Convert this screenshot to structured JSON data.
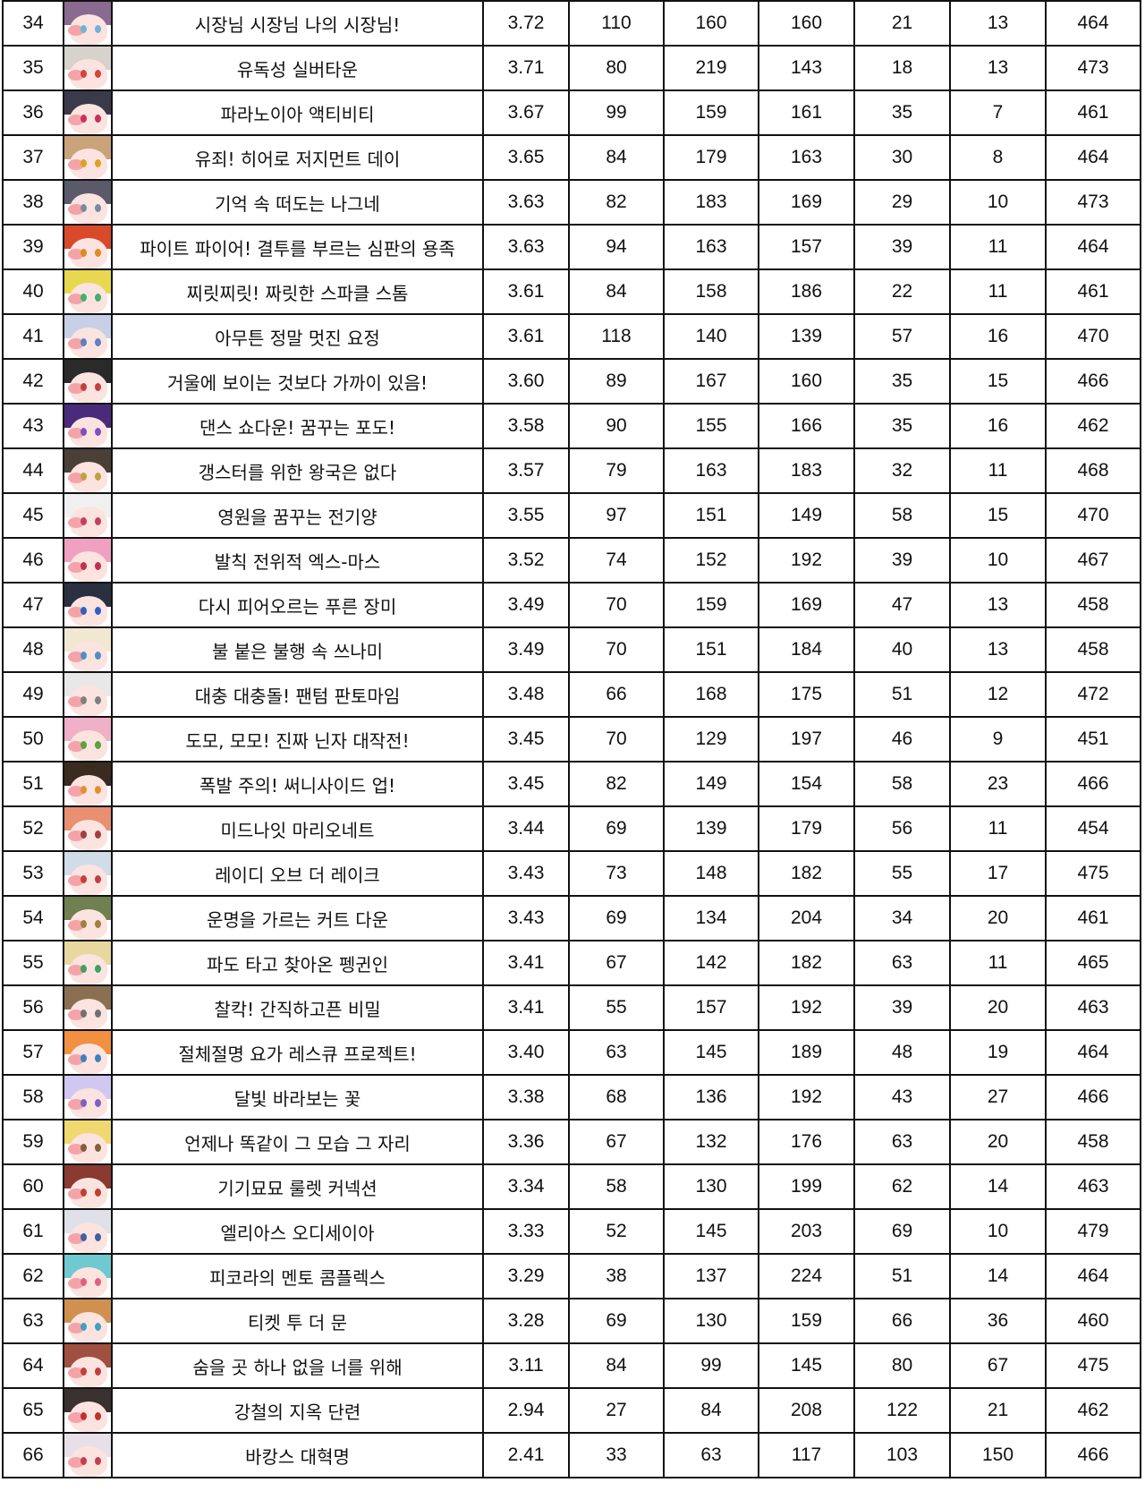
{
  "rows": [
    {
      "rank": "34",
      "title": "시장님 시장님 나의 시장님!",
      "score": "3.72",
      "c1": "110",
      "c2": "160",
      "c3": "160",
      "c4": "21",
      "c5": "13",
      "total": "464",
      "hair": "#8a6a8e",
      "eye": "#6fb3d9"
    },
    {
      "rank": "35",
      "title": "유독성 실버타운",
      "score": "3.71",
      "c1": "80",
      "c2": "219",
      "c3": "143",
      "c4": "18",
      "c5": "13",
      "total": "473",
      "hair": "#d8d2cc",
      "eye": "#d2463c"
    },
    {
      "rank": "36",
      "title": "파라노이아 액티비티",
      "score": "3.67",
      "c1": "99",
      "c2": "159",
      "c3": "161",
      "c4": "35",
      "c5": "7",
      "total": "461",
      "hair": "#3a3a4a",
      "eye": "#c8325a"
    },
    {
      "rank": "37",
      "title": "유죄! 히어로 저지먼트 데이",
      "score": "3.65",
      "c1": "84",
      "c2": "179",
      "c3": "163",
      "c4": "30",
      "c5": "8",
      "total": "464",
      "hair": "#c9a47a",
      "eye": "#e0a020"
    },
    {
      "rank": "38",
      "title": "기억 속 떠도는 나그네",
      "score": "3.63",
      "c1": "82",
      "c2": "183",
      "c3": "169",
      "c4": "29",
      "c5": "10",
      "total": "473",
      "hair": "#5a5a6a",
      "eye": "#7a8aa0"
    },
    {
      "rank": "39",
      "title": "파이트 파이어! 결투를 부르는 심판의 용족",
      "score": "3.63",
      "c1": "94",
      "c2": "163",
      "c3": "157",
      "c4": "39",
      "c5": "11",
      "total": "464",
      "hair": "#d84a2a",
      "eye": "#e08a20"
    },
    {
      "rank": "40",
      "title": "찌릿찌릿! 짜릿한 스파클 스톰",
      "score": "3.61",
      "c1": "84",
      "c2": "158",
      "c3": "186",
      "c4": "22",
      "c5": "11",
      "total": "461",
      "hair": "#e8d850",
      "eye": "#40b070"
    },
    {
      "rank": "41",
      "title": "아무튼 정말 멋진 요정",
      "score": "3.61",
      "c1": "118",
      "c2": "140",
      "c3": "139",
      "c4": "57",
      "c5": "16",
      "total": "470",
      "hair": "#c8d0e8",
      "eye": "#6080c0"
    },
    {
      "rank": "42",
      "title": "거울에 보이는 것보다 가까이 있음!",
      "score": "3.60",
      "c1": "89",
      "c2": "167",
      "c3": "160",
      "c4": "35",
      "c5": "15",
      "total": "466",
      "hair": "#2a2a2a",
      "eye": "#c04040"
    },
    {
      "rank": "43",
      "title": "댄스 쇼다운! 꿈꾸는 포도!",
      "score": "3.58",
      "c1": "90",
      "c2": "155",
      "c3": "166",
      "c4": "35",
      "c5": "16",
      "total": "462",
      "hair": "#4a2a7a",
      "eye": "#8050c0"
    },
    {
      "rank": "44",
      "title": "갱스터를 위한 왕국은 없다",
      "score": "3.57",
      "c1": "79",
      "c2": "163",
      "c3": "183",
      "c4": "32",
      "c5": "11",
      "total": "468",
      "hair": "#4a4038",
      "eye": "#c0a040"
    },
    {
      "rank": "45",
      "title": "영원을 꿈꾸는 전기양",
      "score": "3.55",
      "c1": "97",
      "c2": "151",
      "c3": "149",
      "c4": "58",
      "c5": "15",
      "total": "470",
      "hair": "#f0f0f0",
      "eye": "#c04060"
    },
    {
      "rank": "46",
      "title": "발칙 전위적 엑스-마스",
      "score": "3.52",
      "c1": "74",
      "c2": "152",
      "c3": "192",
      "c4": "39",
      "c5": "10",
      "total": "467",
      "hair": "#f0a0c0",
      "eye": "#c03050"
    },
    {
      "rank": "47",
      "title": "다시 피어오르는 푸른 장미",
      "score": "3.49",
      "c1": "70",
      "c2": "159",
      "c3": "169",
      "c4": "47",
      "c5": "13",
      "total": "458",
      "hair": "#2a3040",
      "eye": "#3060c0"
    },
    {
      "rank": "48",
      "title": "불 붙은 불행 속 쓰나미",
      "score": "3.49",
      "c1": "70",
      "c2": "151",
      "c3": "184",
      "c4": "40",
      "c5": "13",
      "total": "458",
      "hair": "#f0e8d0",
      "eye": "#5090c0"
    },
    {
      "rank": "49",
      "title": "대충 대충돌! 팬텀 판토마임",
      "score": "3.48",
      "c1": "66",
      "c2": "168",
      "c3": "175",
      "c4": "51",
      "c5": "12",
      "total": "472",
      "hair": "#e8e8e8",
      "eye": "#808080"
    },
    {
      "rank": "50",
      "title": "도모, 모모! 진짜 닌자 대작전!",
      "score": "3.45",
      "c1": "70",
      "c2": "129",
      "c3": "197",
      "c4": "46",
      "c5": "9",
      "total": "451",
      "hair": "#f0b0c8",
      "eye": "#60a040"
    },
    {
      "rank": "51",
      "title": "폭발 주의! 써니사이드 업!",
      "score": "3.45",
      "c1": "82",
      "c2": "149",
      "c3": "154",
      "c4": "58",
      "c5": "23",
      "total": "466",
      "hair": "#3a2a20",
      "eye": "#e09030"
    },
    {
      "rank": "52",
      "title": "미드나잇 마리오네트",
      "score": "3.44",
      "c1": "69",
      "c2": "139",
      "c3": "179",
      "c4": "56",
      "c5": "11",
      "total": "454",
      "hair": "#e89070",
      "eye": "#a04040"
    },
    {
      "rank": "53",
      "title": "레이디 오브 더 레이크",
      "score": "3.43",
      "c1": "73",
      "c2": "148",
      "c3": "182",
      "c4": "55",
      "c5": "17",
      "total": "475",
      "hair": "#d0dce8",
      "eye": "#c04040"
    },
    {
      "rank": "54",
      "title": "운명을 가르는 커트 다운",
      "score": "3.43",
      "c1": "69",
      "c2": "134",
      "c3": "204",
      "c4": "34",
      "c5": "20",
      "total": "461",
      "hair": "#708050",
      "eye": "#a08040"
    },
    {
      "rank": "55",
      "title": "파도 타고 찾아온 펭귄인",
      "score": "3.41",
      "c1": "67",
      "c2": "142",
      "c3": "182",
      "c4": "63",
      "c5": "11",
      "total": "465",
      "hair": "#e8d8a0",
      "eye": "#40a060"
    },
    {
      "rank": "56",
      "title": "찰칵! 간직하고픈 비밀",
      "score": "3.41",
      "c1": "55",
      "c2": "157",
      "c3": "192",
      "c4": "39",
      "c5": "20",
      "total": "463",
      "hair": "#8a7050",
      "eye": "#707070"
    },
    {
      "rank": "57",
      "title": "절체절명 요가 레스큐 프로젝트!",
      "score": "3.40",
      "c1": "63",
      "c2": "145",
      "c3": "189",
      "c4": "48",
      "c5": "19",
      "total": "464",
      "hair": "#f09040",
      "eye": "#4080c0"
    },
    {
      "rank": "58",
      "title": "달빛 바라보는 꽃",
      "score": "3.38",
      "c1": "68",
      "c2": "136",
      "c3": "192",
      "c4": "43",
      "c5": "27",
      "total": "466",
      "hair": "#d0c8f0",
      "eye": "#8060c0"
    },
    {
      "rank": "59",
      "title": "언제나 똑같이 그 모습 그 자리",
      "score": "3.36",
      "c1": "67",
      "c2": "132",
      "c3": "176",
      "c4": "63",
      "c5": "20",
      "total": "458",
      "hair": "#f0d870",
      "eye": "#806040"
    },
    {
      "rank": "60",
      "title": "기기묘묘 룰렛 커넥션",
      "score": "3.34",
      "c1": "58",
      "c2": "130",
      "c3": "199",
      "c4": "62",
      "c5": "14",
      "total": "463",
      "hair": "#8a3a30",
      "eye": "#c04030"
    },
    {
      "rank": "61",
      "title": "엘리아스 오디세이아",
      "score": "3.33",
      "c1": "52",
      "c2": "145",
      "c3": "203",
      "c4": "69",
      "c5": "10",
      "total": "479",
      "hair": "#e0e0e8",
      "eye": "#4060a0"
    },
    {
      "rank": "62",
      "title": "피코라의 멘토 콤플렉스",
      "score": "3.29",
      "c1": "38",
      "c2": "137",
      "c3": "224",
      "c4": "51",
      "c5": "14",
      "total": "464",
      "hair": "#70c8d0",
      "eye": "#e06080"
    },
    {
      "rank": "63",
      "title": "티켓 투 더 문",
      "score": "3.28",
      "c1": "69",
      "c2": "130",
      "c3": "159",
      "c4": "66",
      "c5": "36",
      "total": "460",
      "hair": "#d09050",
      "eye": "#40a0c0"
    },
    {
      "rank": "64",
      "title": "숨을 곳 하나 없을 너를 위해",
      "score": "3.11",
      "c1": "84",
      "c2": "99",
      "c3": "145",
      "c4": "80",
      "c5": "67",
      "total": "475",
      "hair": "#a05040",
      "eye": "#c04040"
    },
    {
      "rank": "65",
      "title": "강철의 지옥 단련",
      "score": "2.94",
      "c1": "27",
      "c2": "84",
      "c3": "208",
      "c4": "122",
      "c5": "21",
      "total": "462",
      "hair": "#3a3030",
      "eye": "#c03030"
    },
    {
      "rank": "66",
      "title": "바캉스 대혁명",
      "score": "2.41",
      "c1": "33",
      "c2": "63",
      "c3": "117",
      "c4": "103",
      "c5": "150",
      "total": "466",
      "hair": "#e8e0e8",
      "eye": "#c04050"
    }
  ]
}
